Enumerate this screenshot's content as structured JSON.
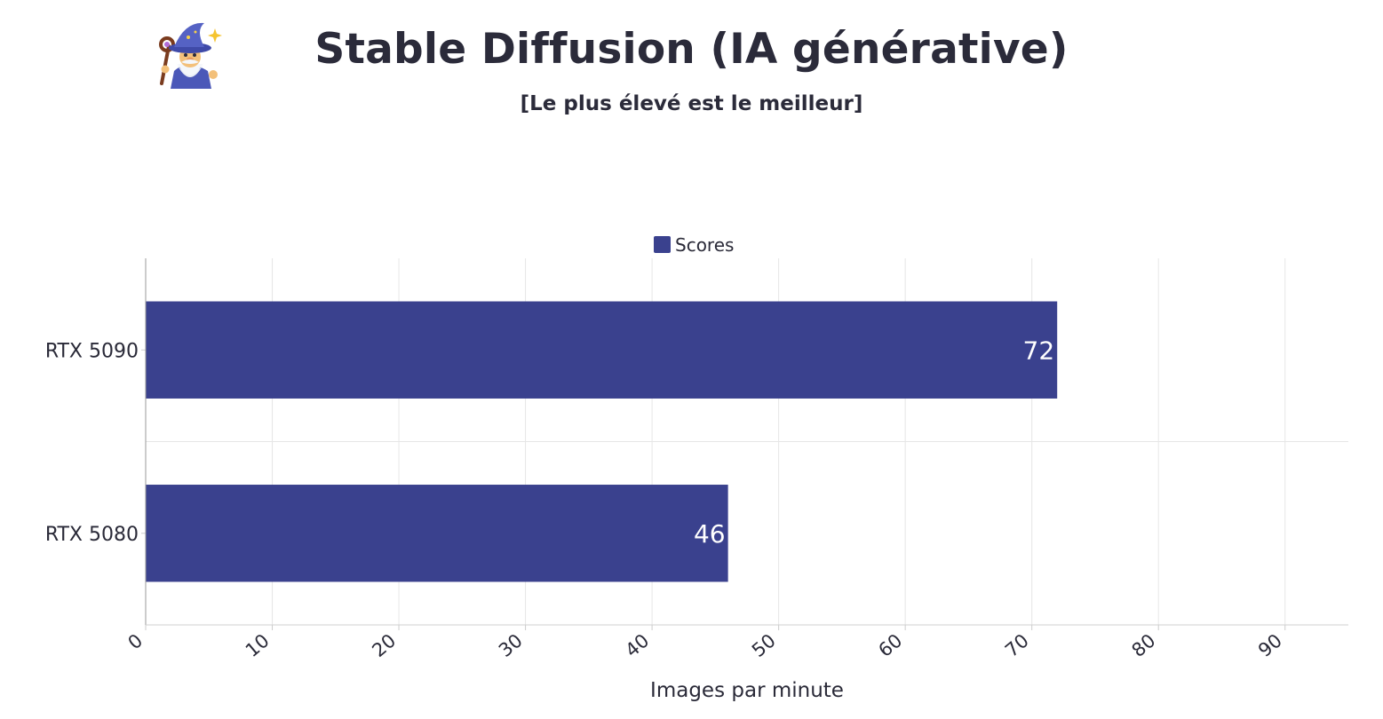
{
  "header": {
    "title": "Stable Diffusion (IA générative)",
    "subtitle": "[Le plus élevé est le meilleur]",
    "logo_icon": "wizard-icon"
  },
  "chart_data": {
    "type": "bar",
    "orientation": "horizontal",
    "categories": [
      "RTX 5090",
      "RTX 5080"
    ],
    "series": [
      {
        "name": "Scores",
        "values": [
          72,
          46
        ],
        "color": "#3a418e"
      }
    ],
    "xlabel": "Images par minute",
    "ylabel": "",
    "xlim": [
      0,
      95
    ],
    "xticks": [
      "0",
      "10",
      "20",
      "30",
      "40",
      "50",
      "60",
      "70",
      "80",
      "90"
    ],
    "legend_position": "top-center",
    "grid": true
  }
}
